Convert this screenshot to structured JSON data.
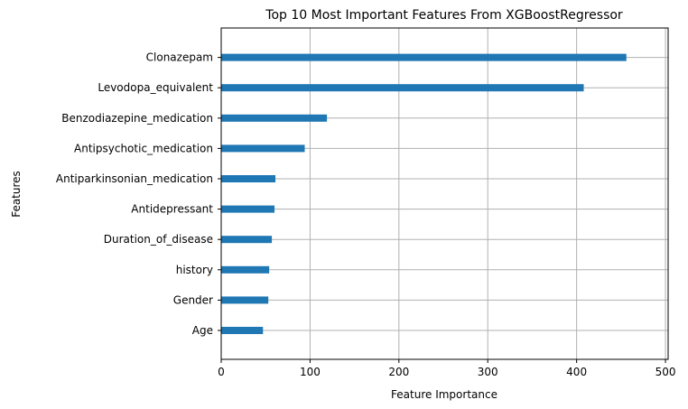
{
  "chart_data": {
    "type": "bar",
    "orientation": "horizontal",
    "title": "Top 10 Most Important Features From XGBoostRegressor",
    "xlabel": "Feature Importance",
    "ylabel": "Features",
    "categories": [
      "Age",
      "Gender",
      "history",
      "Duration_of_disease",
      "Antidepressant",
      "Antiparkinsonian_medication",
      "Antipsychotic_medication",
      "Benzodiazepine_medication",
      "Levodopa_equivalent",
      "Clonazepam"
    ],
    "values": [
      47,
      53,
      54,
      57,
      60,
      61,
      94,
      119,
      408,
      456
    ],
    "xlim": [
      0,
      503
    ],
    "xticks": [
      0,
      100,
      200,
      300,
      400,
      500
    ],
    "grid": true,
    "bar_color": "#1f77b4"
  }
}
